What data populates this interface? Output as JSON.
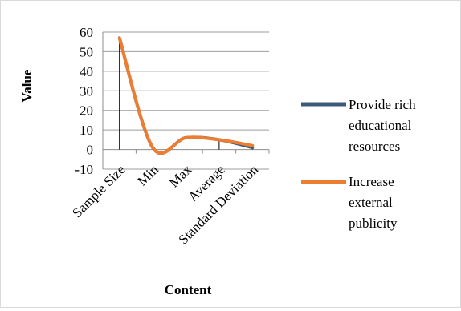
{
  "chart_data": {
    "type": "line",
    "categories": [
      "Sample Size",
      "Min",
      "Max",
      "Average",
      "Standard Deviation"
    ],
    "series": [
      {
        "name": "Provide rich educational resources",
        "values": [
          57,
          1,
          6,
          5,
          1
        ],
        "color": "#3c5a7a"
      },
      {
        "name": "Increase external publicity",
        "values": [
          57,
          1,
          6,
          5,
          2
        ],
        "color": "#ed7d31"
      }
    ],
    "title": "",
    "xlabel": "Content",
    "ylabel": "Value",
    "ylim": [
      -10,
      60
    ],
    "yticks": [
      60,
      50,
      40,
      30,
      20,
      10,
      0,
      -10
    ],
    "grid": true,
    "legend": "right",
    "smooth": true,
    "drop_lines": true
  },
  "legend": {
    "series1_lines": [
      "Provide rich",
      "educational",
      "resources"
    ],
    "series2_lines": [
      " Increase",
      "external",
      "publicity"
    ]
  }
}
